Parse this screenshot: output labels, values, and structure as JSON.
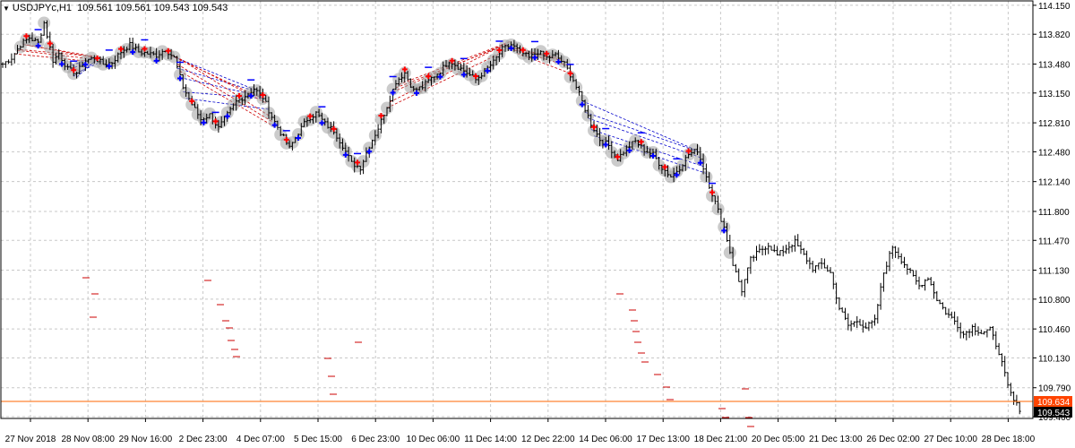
{
  "header": {
    "symbol": "USDJPYc,H1",
    "ohlc": "109.561 109.561 109.543 109.543",
    "menu_icon": "triangle-down-icon"
  },
  "colors": {
    "background": "#ffffff",
    "grid": "#c8c8c8",
    "bar": "#000000",
    "bid_line": "#ff6600",
    "price_tag_bid": "#ff4400",
    "price_tag_last": "#000000",
    "signal_up": "#ff0000",
    "signal_down": "#0000ff",
    "dash_red": "#cc0000",
    "dash_blue": "#0000cc",
    "halo": "#a0a0a0"
  },
  "chart_data": {
    "type": "ohlc",
    "y_ticks": [
      "114.150",
      "113.820",
      "113.480",
      "113.150",
      "112.810",
      "112.480",
      "112.140",
      "111.800",
      "111.470",
      "111.130",
      "110.800",
      "110.460",
      "110.130",
      "109.790",
      "109.460"
    ],
    "ylim": [
      109.44,
      114.2
    ],
    "x_labels": [
      "27 Nov 2018",
      "28 Nov 08:00",
      "29 Nov 16:00",
      "2 Dec 23:00",
      "4 Dec 07:00",
      "5 Dec 15:00",
      "6 Dec 23:00",
      "10 Dec 06:00",
      "11 Dec 14:00",
      "12 Dec 22:00",
      "14 Dec 06:00",
      "17 Dec 13:00",
      "18 Dec 21:00",
      "20 Dec 05:00",
      "21 Dec 13:00",
      "26 Dec 02:00",
      "27 Dec 10:00",
      "28 Dec 18:00"
    ],
    "price_anchors": [
      [
        0,
        113.48
      ],
      [
        3,
        113.55
      ],
      [
        6,
        113.7
      ],
      [
        9,
        113.78
      ],
      [
        12,
        113.72
      ],
      [
        14,
        113.95
      ],
      [
        17,
        113.52
      ],
      [
        19,
        113.6
      ],
      [
        22,
        113.42
      ],
      [
        25,
        113.38
      ],
      [
        28,
        113.52
      ],
      [
        31,
        113.55
      ],
      [
        34,
        113.48
      ],
      [
        37,
        113.5
      ],
      [
        40,
        113.62
      ],
      [
        43,
        113.7
      ],
      [
        46,
        113.62
      ],
      [
        49,
        113.6
      ],
      [
        52,
        113.58
      ],
      [
        55,
        113.65
      ],
      [
        58,
        113.55
      ],
      [
        61,
        113.22
      ],
      [
        64,
        113.02
      ],
      [
        67,
        112.85
      ],
      [
        70,
        112.9
      ],
      [
        73,
        112.75
      ],
      [
        76,
        112.9
      ],
      [
        79,
        113.05
      ],
      [
        82,
        113.12
      ],
      [
        85,
        113.2
      ],
      [
        88,
        113.1
      ],
      [
        91,
        112.88
      ],
      [
        94,
        112.7
      ],
      [
        97,
        112.52
      ],
      [
        100,
        112.7
      ],
      [
        103,
        112.85
      ],
      [
        106,
        112.92
      ],
      [
        109,
        112.8
      ],
      [
        112,
        112.72
      ],
      [
        115,
        112.55
      ],
      [
        118,
        112.35
      ],
      [
        121,
        112.3
      ],
      [
        124,
        112.55
      ],
      [
        127,
        112.75
      ],
      [
        130,
        113.0
      ],
      [
        133,
        113.28
      ],
      [
        136,
        113.38
      ],
      [
        139,
        113.18
      ],
      [
        142,
        113.22
      ],
      [
        145,
        113.32
      ],
      [
        148,
        113.4
      ],
      [
        151,
        113.52
      ],
      [
        154,
        113.45
      ],
      [
        157,
        113.38
      ],
      [
        160,
        113.3
      ],
      [
        163,
        113.4
      ],
      [
        166,
        113.5
      ],
      [
        169,
        113.65
      ],
      [
        172,
        113.7
      ],
      [
        175,
        113.62
      ],
      [
        178,
        113.55
      ],
      [
        181,
        113.62
      ],
      [
        184,
        113.55
      ],
      [
        187,
        113.58
      ],
      [
        190,
        113.48
      ],
      [
        193,
        113.3
      ],
      [
        196,
        113.05
      ],
      [
        199,
        112.8
      ],
      [
        202,
        112.62
      ],
      [
        205,
        112.55
      ],
      [
        208,
        112.4
      ],
      [
        211,
        112.52
      ],
      [
        214,
        112.6
      ],
      [
        217,
        112.5
      ],
      [
        220,
        112.45
      ],
      [
        223,
        112.3
      ],
      [
        226,
        112.2
      ],
      [
        229,
        112.3
      ],
      [
        232,
        112.45
      ],
      [
        235,
        112.5
      ],
      [
        238,
        112.2
      ],
      [
        241,
        111.9
      ],
      [
        244,
        111.62
      ],
      [
        247,
        111.2
      ],
      [
        250,
        110.9
      ],
      [
        253,
        111.25
      ],
      [
        256,
        111.35
      ],
      [
        259,
        111.42
      ],
      [
        262,
        111.3
      ],
      [
        265,
        111.38
      ],
      [
        268,
        111.45
      ],
      [
        271,
        111.3
      ],
      [
        274,
        111.15
      ],
      [
        277,
        111.2
      ],
      [
        280,
        111.1
      ],
      [
        283,
        110.7
      ],
      [
        286,
        110.5
      ],
      [
        289,
        110.55
      ],
      [
        292,
        110.48
      ],
      [
        295,
        110.55
      ],
      [
        298,
        111.1
      ],
      [
        301,
        111.4
      ],
      [
        304,
        111.25
      ],
      [
        307,
        111.1
      ],
      [
        310,
        110.95
      ],
      [
        313,
        111.05
      ],
      [
        316,
        110.8
      ],
      [
        319,
        110.65
      ],
      [
        322,
        110.55
      ],
      [
        325,
        110.4
      ],
      [
        328,
        110.48
      ],
      [
        331,
        110.42
      ],
      [
        334,
        110.45
      ],
      [
        337,
        110.2
      ],
      [
        340,
        109.8
      ],
      [
        342,
        109.64
      ],
      [
        344,
        109.55
      ]
    ],
    "last_price_tag": "109.543",
    "bid_price_tag": "109.634",
    "bid_price": 109.634
  }
}
